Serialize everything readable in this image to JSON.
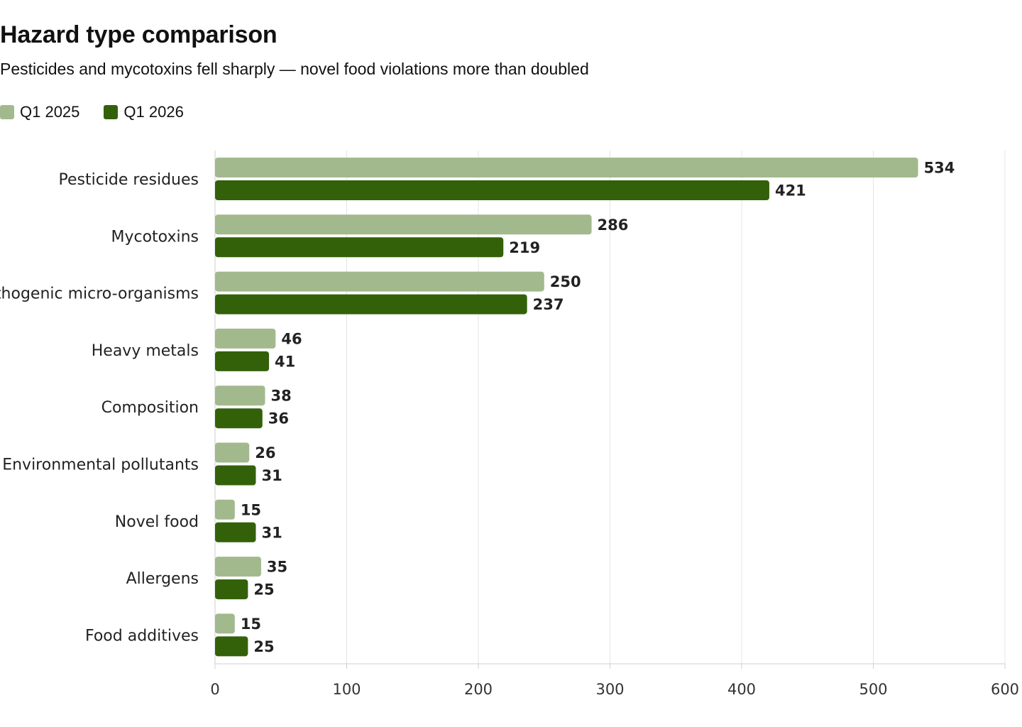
{
  "chart_data": {
    "type": "bar",
    "orientation": "horizontal",
    "title": "Hazard type comparison",
    "subtitle": "Pesticides and mycotoxins fell sharply — novel food violations more than doubled",
    "categories": [
      "Pesticide residues",
      "Mycotoxins",
      "Pathogenic micro-organisms",
      "Heavy metals",
      "Composition",
      "Environmental pollutants",
      "Novel food",
      "Allergens",
      "Food additives"
    ],
    "series": [
      {
        "name": "Q1 2025",
        "color": "#a2b98d",
        "values": [
          534,
          286,
          250,
          46,
          38,
          26,
          15,
          35,
          15
        ]
      },
      {
        "name": "Q1 2026",
        "color": "#33610a",
        "values": [
          421,
          219,
          237,
          41,
          36,
          31,
          31,
          25,
          25
        ]
      }
    ],
    "xlim": [
      0,
      600
    ],
    "xticks": [
      0,
      100,
      200,
      300,
      400,
      500,
      600
    ],
    "grid": true,
    "legend_position": "top-left",
    "data_labels": true
  }
}
